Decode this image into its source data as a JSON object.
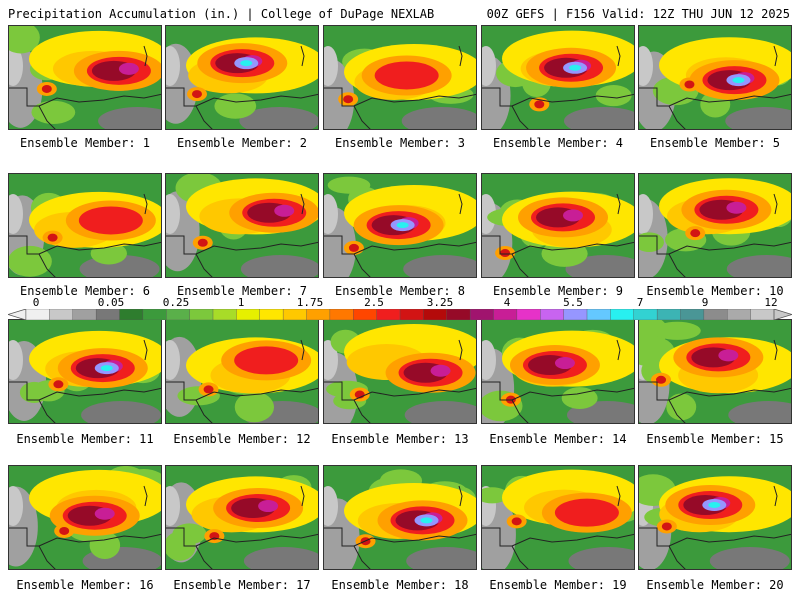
{
  "header": {
    "left": "Precipitation Accumulation (in.) | College of DuPage NEXLAB",
    "right": "00Z GEFS | F156 Valid: 12Z THU JUN 12 2025"
  },
  "panels": [
    {
      "label": "Ensemble Member: 1",
      "intensity": 2
    },
    {
      "label": "Ensemble Member: 2",
      "intensity": 3
    },
    {
      "label": "Ensemble Member: 3",
      "intensity": 1
    },
    {
      "label": "Ensemble Member: 4",
      "intensity": 3
    },
    {
      "label": "Ensemble Member: 5",
      "intensity": 3
    },
    {
      "label": "Ensemble Member: 6",
      "intensity": 1
    },
    {
      "label": "Ensemble Member: 7",
      "intensity": 2
    },
    {
      "label": "Ensemble Member: 8",
      "intensity": 3
    },
    {
      "label": "Ensemble Member: 9",
      "intensity": 2
    },
    {
      "label": "Ensemble Member: 10",
      "intensity": 2
    },
    {
      "label": "Ensemble Member: 11",
      "intensity": 3
    },
    {
      "label": "Ensemble Member: 12",
      "intensity": 1
    },
    {
      "label": "Ensemble Member: 13",
      "intensity": 2
    },
    {
      "label": "Ensemble Member: 14",
      "intensity": 2
    },
    {
      "label": "Ensemble Member: 15",
      "intensity": 2
    },
    {
      "label": "Ensemble Member: 16",
      "intensity": 2
    },
    {
      "label": "Ensemble Member: 17",
      "intensity": 2
    },
    {
      "label": "Ensemble Member: 18",
      "intensity": 3
    },
    {
      "label": "Ensemble Member: 19",
      "intensity": 1
    },
    {
      "label": "Ensemble Member: 20",
      "intensity": 3
    }
  ],
  "colorbar": {
    "labels": [
      "0",
      "0.05",
      "0.25",
      "1",
      "1.75",
      "2.5",
      "3.25",
      "4",
      "5.5",
      "7",
      "9",
      "12"
    ],
    "colors": [
      "#f0f0f0",
      "#c8c8c8",
      "#a0a0a0",
      "#787878",
      "#2e7d2e",
      "#3c9a3c",
      "#5ab04a",
      "#7cc83c",
      "#a8dc28",
      "#e6f000",
      "#ffe600",
      "#ffc800",
      "#ffa000",
      "#ff7800",
      "#ff4600",
      "#f01e1e",
      "#d21414",
      "#b40a0a",
      "#960a28",
      "#a0146e",
      "#c81e96",
      "#e632c8",
      "#c864f0",
      "#9696ff",
      "#64c8ff",
      "#28f0f0",
      "#32d2d2",
      "#3cb4b4",
      "#4a9696",
      "#8c8c8c",
      "#aaaaaa",
      "#c8c8c8"
    ]
  }
}
